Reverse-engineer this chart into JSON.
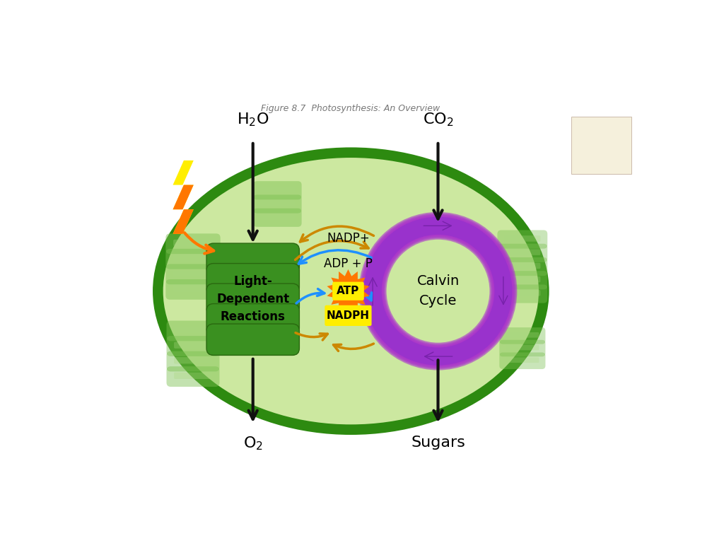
{
  "bg_color": "#ffffff",
  "cell_outer_color": "#2d8a10",
  "cell_inner_color": "#cce8a0",
  "light_box_color": "#3a9020",
  "light_box_border": "#2a6810",
  "light_box_text": "Light-\nDependent\nReactions",
  "calvin_circle_color_start": "#9932cc",
  "calvin_circle_color_end": "#cc44bb",
  "calvin_text": "Calvin\nCycle",
  "atp_star_color": "#ff7700",
  "atp_bg_color": "#ffee00",
  "nadph_bg_color": "#ffee00",
  "nadp_text": "NADP+",
  "adp_text": "ADP + P",
  "atp_text": "ATP",
  "nadph_text": "NADPH",
  "arrow_orange": "#cc8800",
  "arrow_blue": "#1e90ff",
  "arrow_black": "#111111",
  "arrow_purple": "#7722aa",
  "lightning_yellow": "#ffee00",
  "lightning_orange": "#ff7700",
  "thylakoid_dark": "#7abf50",
  "thylakoid_light": "#aad880",
  "cream_color": "#f5f0dc",
  "title_text": "Figure 8.7  Photosynthesis: An Overview"
}
